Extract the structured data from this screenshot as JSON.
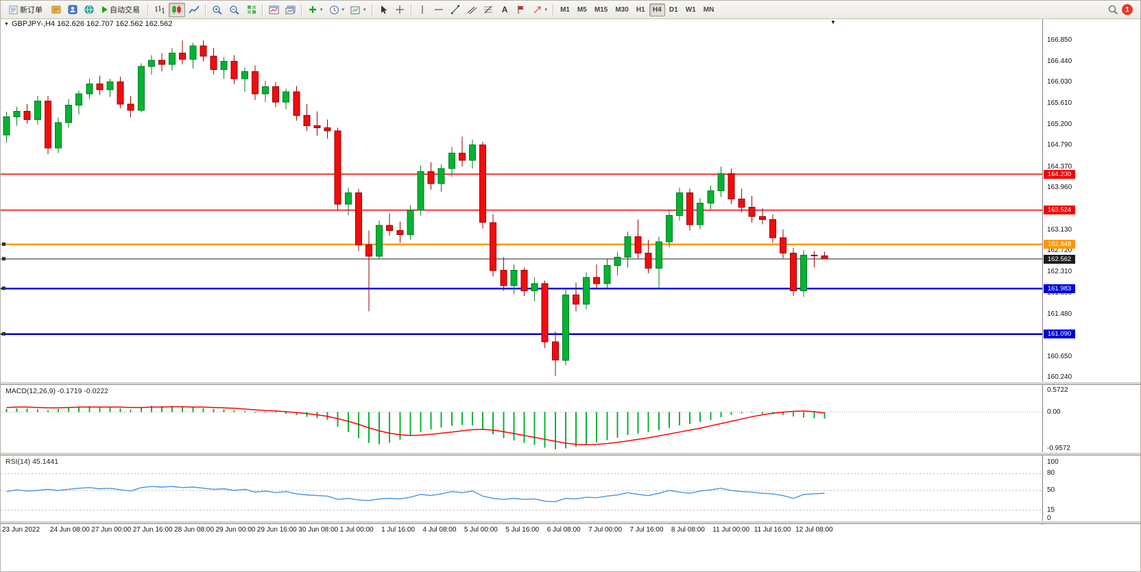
{
  "toolbar": {
    "new_order": "新订单",
    "auto_trading": "自动交易",
    "text_tool_label": "A",
    "timeframes": [
      "M1",
      "M5",
      "M15",
      "M30",
      "H1",
      "H4",
      "D1",
      "W1",
      "MN"
    ],
    "active_timeframe": "H4",
    "notification_count": "1",
    "icons": [
      "new-order",
      "market-watch",
      "navigator",
      "terminal",
      "auto-trading-play",
      "bar-chart",
      "candlestick-chart",
      "line-chart",
      "zoom-in",
      "zoom-out",
      "tile-windows",
      "arrange-windows",
      "cascade-windows",
      "indicators-add",
      "periods-clock",
      "templates",
      "cursor",
      "crosshair",
      "vertical-line",
      "horizontal-line",
      "trendline",
      "equidistant-channel",
      "fibonacci",
      "text",
      "flag-label",
      "arrow-tools",
      "search",
      "notification"
    ]
  },
  "chart_data": [
    {
      "type": "candlestick",
      "symbol": "GBPJPY-",
      "timeframe": "H4",
      "title": "GBPJPY-,H4  162.626 162.707 162.562 162.562",
      "ohlc": {
        "open": 162.626,
        "high": 162.707,
        "low": 162.562,
        "close": 162.562
      },
      "ylim": [
        160.16,
        167.28
      ],
      "colors": {
        "up": "#00B432",
        "up_border": "#007A20",
        "down": "#F20C0C",
        "down_border": "#990000"
      },
      "y_ticks": [
        166.85,
        166.44,
        166.03,
        165.61,
        165.2,
        164.79,
        164.37,
        163.96,
        163.13,
        162.72,
        162.31,
        161.89,
        161.48,
        160.65,
        160.24
      ],
      "hlines": [
        {
          "price": 164.23,
          "label": "164.230",
          "color": "#F40000",
          "w": 1.5,
          "handle": false
        },
        {
          "price": 163.524,
          "label": "163.524",
          "color": "#F40000",
          "w": 1.5,
          "handle": false
        },
        {
          "price": 162.848,
          "label": "162.848",
          "color": "#FF9800",
          "w": 2.4,
          "handle": true
        },
        {
          "price": 162.562,
          "label": "162.562",
          "color": "#1c1c1c",
          "w": 1.0,
          "handle": true
        },
        {
          "price": 161.983,
          "label": "161.983",
          "color": "#0000E0",
          "w": 2.4,
          "handle": true
        },
        {
          "price": 161.09,
          "label": "161.090",
          "color": "#0000E0",
          "w": 2.4,
          "handle": true
        }
      ],
      "x_labels": [
        {
          "i": 0,
          "t": "23 Jun 2022"
        },
        {
          "i": 4,
          "t": "24 Jun 08:00"
        },
        {
          "i": 8,
          "t": "27 Jun 00:00"
        },
        {
          "i": 12,
          "t": "27 Jun 16:00"
        },
        {
          "i": 16,
          "t": "28 Jun 08:00"
        },
        {
          "i": 20,
          "t": "29 Jun 00:00"
        },
        {
          "i": 24,
          "t": "29 Jun 16:00"
        },
        {
          "i": 28,
          "t": "30 Jun 08:00"
        },
        {
          "i": 32,
          "t": "1 Jul 00:00"
        },
        {
          "i": 36,
          "t": "1 Jul 16:00"
        },
        {
          "i": 40,
          "t": "4 Jul 08:00"
        },
        {
          "i": 44,
          "t": "5 Jul 00:00"
        },
        {
          "i": 48,
          "t": "5 Jul 16:00"
        },
        {
          "i": 52,
          "t": "6 Jul 08:00"
        },
        {
          "i": 56,
          "t": "7 Jul 00:00"
        },
        {
          "i": 60,
          "t": "7 Jul 16:00"
        },
        {
          "i": 64,
          "t": "8 Jul 08:00"
        },
        {
          "i": 68,
          "t": "11 Jul 00:00"
        },
        {
          "i": 72,
          "t": "11 Jul 16:00"
        },
        {
          "i": 76,
          "t": "12 Jul 08:00"
        }
      ],
      "candles": [
        [
          165.0,
          165.45,
          164.85,
          165.35
        ],
        [
          165.35,
          165.55,
          165.18,
          165.46
        ],
        [
          165.46,
          165.6,
          165.22,
          165.3
        ],
        [
          165.3,
          165.76,
          165.2,
          165.66
        ],
        [
          165.66,
          165.76,
          164.62,
          164.74
        ],
        [
          164.74,
          165.34,
          164.64,
          165.24
        ],
        [
          165.24,
          165.7,
          165.14,
          165.58
        ],
        [
          165.58,
          165.86,
          165.4,
          165.8
        ],
        [
          165.8,
          166.1,
          165.7,
          166.0
        ],
        [
          166.0,
          166.16,
          165.78,
          165.88
        ],
        [
          165.88,
          166.1,
          165.74,
          166.04
        ],
        [
          166.04,
          166.14,
          165.52,
          165.6
        ],
        [
          165.6,
          165.76,
          165.34,
          165.48
        ],
        [
          165.48,
          166.4,
          165.44,
          166.34
        ],
        [
          166.34,
          166.56,
          166.18,
          166.46
        ],
        [
          166.46,
          166.6,
          166.24,
          166.38
        ],
        [
          166.38,
          166.7,
          166.26,
          166.6
        ],
        [
          166.6,
          166.85,
          166.38,
          166.48
        ],
        [
          166.48,
          166.8,
          166.3,
          166.74
        ],
        [
          166.74,
          166.85,
          166.44,
          166.54
        ],
        [
          166.54,
          166.7,
          166.18,
          166.28
        ],
        [
          166.28,
          166.52,
          166.1,
          166.44
        ],
        [
          166.44,
          166.56,
          166.0,
          166.1
        ],
        [
          166.1,
          166.32,
          165.84,
          166.24
        ],
        [
          166.24,
          166.36,
          165.68,
          165.8
        ],
        [
          165.8,
          166.06,
          165.64,
          165.94
        ],
        [
          165.94,
          166.04,
          165.54,
          165.64
        ],
        [
          165.64,
          165.9,
          165.5,
          165.84
        ],
        [
          165.84,
          165.96,
          165.28,
          165.38
        ],
        [
          165.38,
          165.6,
          165.08,
          165.18
        ],
        [
          165.18,
          165.46,
          164.98,
          165.14
        ],
        [
          165.14,
          165.3,
          164.92,
          165.08
        ],
        [
          165.08,
          165.14,
          163.52,
          163.64
        ],
        [
          163.64,
          163.96,
          163.42,
          163.86
        ],
        [
          163.86,
          163.94,
          162.72,
          162.84
        ],
        [
          162.84,
          163.12,
          161.54,
          162.62
        ],
        [
          162.62,
          163.32,
          162.56,
          163.22
        ],
        [
          163.22,
          163.46,
          163.02,
          163.12
        ],
        [
          163.12,
          163.3,
          162.88,
          163.04
        ],
        [
          163.04,
          163.62,
          162.94,
          163.52
        ],
        [
          163.52,
          164.4,
          163.42,
          164.28
        ],
        [
          164.28,
          164.46,
          163.92,
          164.04
        ],
        [
          164.04,
          164.42,
          163.88,
          164.34
        ],
        [
          164.34,
          164.76,
          164.18,
          164.64
        ],
        [
          164.64,
          164.96,
          164.38,
          164.5
        ],
        [
          164.5,
          164.9,
          164.34,
          164.8
        ],
        [
          164.8,
          164.86,
          163.16,
          163.28
        ],
        [
          163.28,
          163.44,
          162.22,
          162.34
        ],
        [
          162.34,
          162.6,
          161.94,
          162.04
        ],
        [
          162.04,
          162.46,
          161.88,
          162.34
        ],
        [
          162.34,
          162.4,
          161.84,
          161.94
        ],
        [
          161.94,
          162.2,
          161.74,
          162.08
        ],
        [
          162.08,
          162.14,
          160.82,
          160.94
        ],
        [
          160.94,
          161.14,
          160.27,
          160.58
        ],
        [
          160.58,
          161.96,
          160.48,
          161.86
        ],
        [
          161.86,
          162.1,
          161.54,
          161.68
        ],
        [
          161.68,
          162.3,
          161.58,
          162.2
        ],
        [
          162.2,
          162.46,
          161.98,
          162.08
        ],
        [
          162.08,
          162.56,
          162.0,
          162.44
        ],
        [
          162.44,
          162.7,
          162.24,
          162.6
        ],
        [
          162.6,
          163.1,
          162.4,
          163.0
        ],
        [
          163.0,
          163.34,
          162.58,
          162.68
        ],
        [
          162.68,
          162.94,
          162.28,
          162.38
        ],
        [
          162.38,
          163.0,
          161.96,
          162.9
        ],
        [
          162.9,
          163.52,
          162.8,
          163.42
        ],
        [
          163.42,
          163.96,
          163.32,
          163.86
        ],
        [
          163.86,
          163.94,
          163.12,
          163.24
        ],
        [
          163.24,
          163.76,
          163.14,
          163.66
        ],
        [
          163.66,
          164.0,
          163.54,
          163.9
        ],
        [
          163.9,
          164.37,
          163.78,
          164.24
        ],
        [
          164.24,
          164.34,
          163.64,
          163.74
        ],
        [
          163.74,
          163.94,
          163.48,
          163.58
        ],
        [
          163.58,
          163.8,
          163.28,
          163.4
        ],
        [
          163.4,
          163.56,
          163.24,
          163.34
        ],
        [
          163.34,
          163.44,
          162.88,
          162.98
        ],
        [
          162.98,
          163.14,
          162.58,
          162.68
        ],
        [
          162.68,
          162.78,
          161.84,
          161.94
        ],
        [
          161.94,
          162.74,
          161.82,
          162.64
        ],
        [
          162.64,
          162.72,
          162.4,
          162.63
        ],
        [
          162.626,
          162.707,
          162.562,
          162.562
        ]
      ]
    },
    {
      "type": "macd",
      "label": "MACD(12,26,9) -0.1719 -0.0222",
      "ylim": [
        -1.044,
        0.69
      ],
      "y_ticks": [
        0.5722,
        0,
        -0.9572
      ],
      "colors": {
        "histogram": "#00B432",
        "signal": "#FF0000"
      },
      "histogram": [
        0.08,
        0.1,
        0.09,
        0.07,
        0.05,
        0.08,
        0.12,
        0.14,
        0.15,
        0.12,
        0.13,
        0.1,
        0.06,
        0.12,
        0.16,
        0.15,
        0.16,
        0.14,
        0.12,
        0.1,
        0.08,
        0.07,
        0.05,
        0.03,
        0.0,
        -0.02,
        -0.02,
        -0.04,
        -0.08,
        -0.12,
        -0.16,
        -0.2,
        -0.38,
        -0.52,
        -0.68,
        -0.8,
        -0.84,
        -0.8,
        -0.72,
        -0.62,
        -0.52,
        -0.45,
        -0.4,
        -0.36,
        -0.34,
        -0.35,
        -0.45,
        -0.58,
        -0.68,
        -0.74,
        -0.8,
        -0.86,
        -0.93,
        -0.97,
        -0.95,
        -0.9,
        -0.84,
        -0.79,
        -0.73,
        -0.67,
        -0.6,
        -0.56,
        -0.52,
        -0.47,
        -0.41,
        -0.35,
        -0.31,
        -0.26,
        -0.2,
        -0.13,
        -0.07,
        -0.03,
        -0.02,
        -0.04,
        -0.05,
        -0.07,
        -0.11,
        -0.14,
        -0.16,
        -0.1719
      ],
      "signal": [
        0.12,
        0.13,
        0.13,
        0.12,
        0.11,
        0.11,
        0.12,
        0.13,
        0.13,
        0.13,
        0.13,
        0.13,
        0.12,
        0.12,
        0.13,
        0.13,
        0.14,
        0.14,
        0.13,
        0.13,
        0.12,
        0.11,
        0.1,
        0.08,
        0.06,
        0.04,
        0.03,
        0.01,
        -0.01,
        -0.04,
        -0.07,
        -0.11,
        -0.17,
        -0.24,
        -0.32,
        -0.41,
        -0.49,
        -0.55,
        -0.59,
        -0.61,
        -0.6,
        -0.58,
        -0.55,
        -0.52,
        -0.49,
        -0.46,
        -0.45,
        -0.47,
        -0.51,
        -0.56,
        -0.61,
        -0.66,
        -0.71,
        -0.76,
        -0.81,
        -0.84,
        -0.85,
        -0.84,
        -0.82,
        -0.79,
        -0.75,
        -0.71,
        -0.67,
        -0.62,
        -0.57,
        -0.52,
        -0.47,
        -0.42,
        -0.36,
        -0.3,
        -0.24,
        -0.18,
        -0.12,
        -0.07,
        -0.03,
        0.0,
        0.02,
        0.03,
        0.01,
        -0.0222
      ]
    },
    {
      "type": "line",
      "label": "RSI(14) 45.1441",
      "ylim": [
        -3.6,
        110.8
      ],
      "y_ticks": [
        100,
        80,
        50,
        15,
        0
      ],
      "levels": [
        80,
        50,
        15
      ],
      "colors": {
        "line": "#4496E2"
      },
      "values": [
        48,
        51,
        49,
        50,
        52,
        50,
        52,
        54,
        55,
        53,
        54,
        51,
        49,
        55,
        57,
        56,
        57,
        55,
        56,
        54,
        52,
        53,
        50,
        52,
        47,
        49,
        46,
        48,
        44,
        42,
        41,
        40,
        34,
        36,
        33,
        32,
        35,
        36,
        35,
        38,
        43,
        41,
        44,
        48,
        46,
        49,
        40,
        36,
        34,
        36,
        34,
        35,
        31,
        30,
        36,
        35,
        38,
        37,
        40,
        42,
        46,
        43,
        41,
        45,
        50,
        47,
        45,
        49,
        51,
        54,
        50,
        48,
        47,
        45,
        44,
        41,
        36,
        43,
        44,
        45.14
      ]
    }
  ]
}
